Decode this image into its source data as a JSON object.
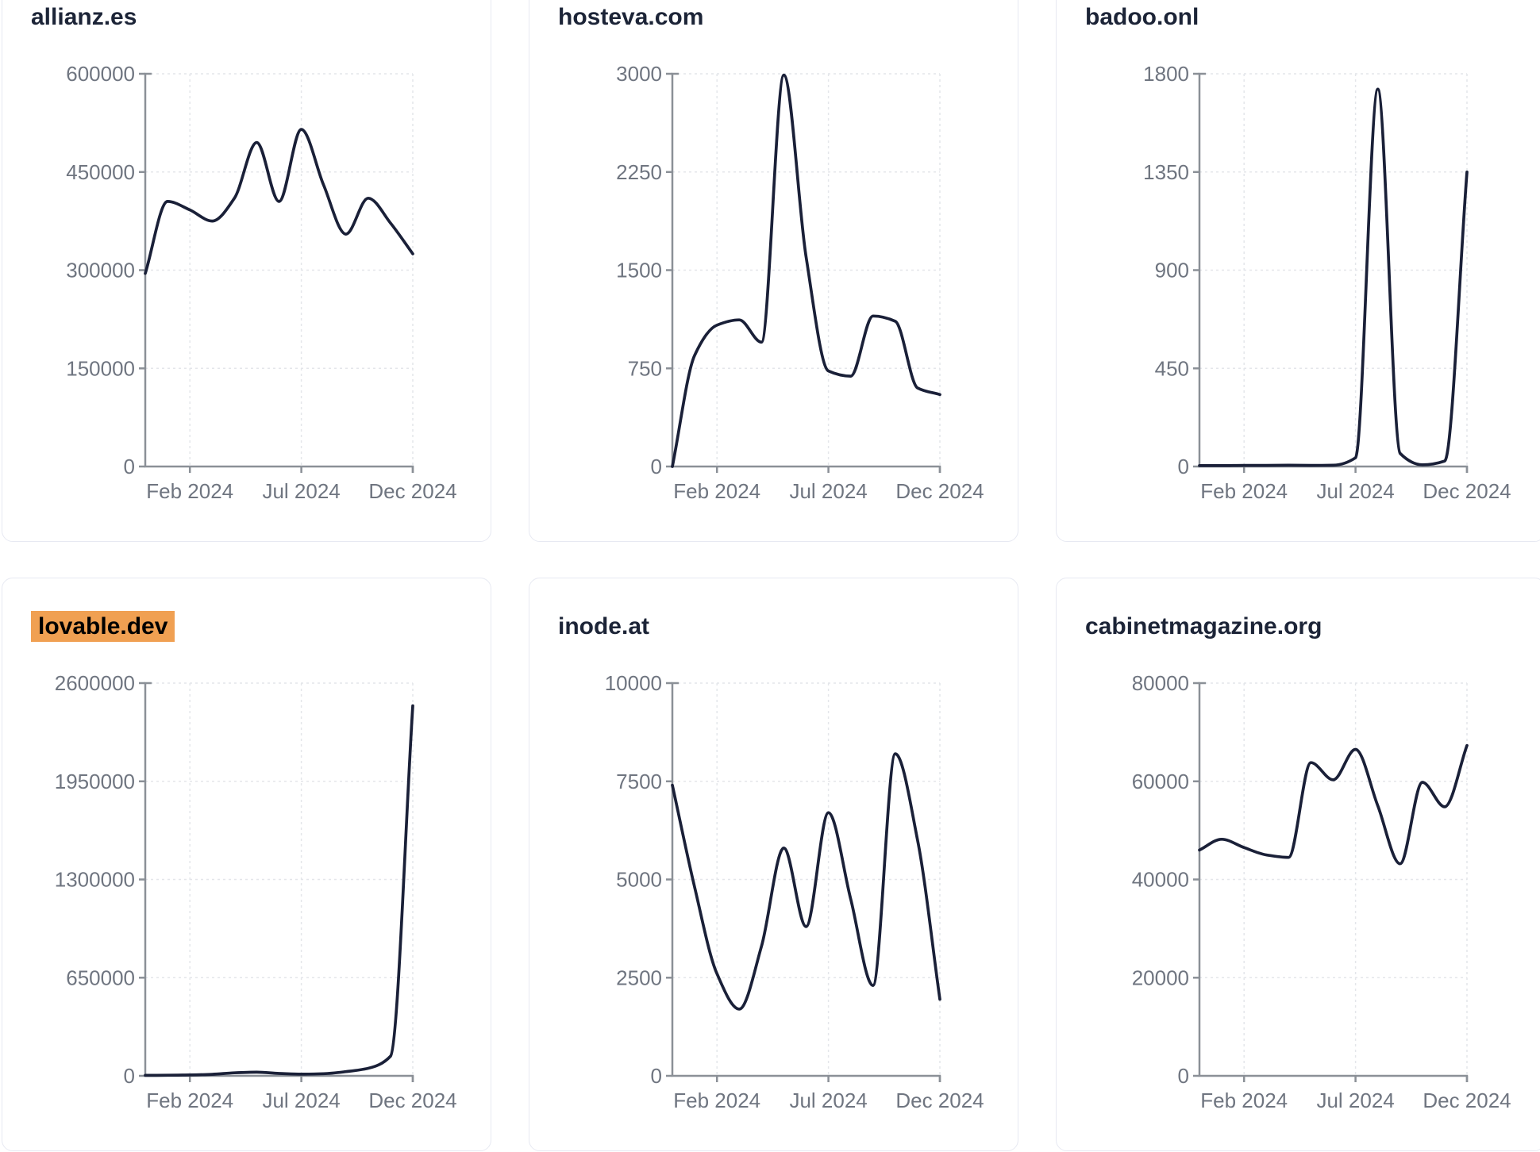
{
  "colors": {
    "background": "#ffffff",
    "card_border": "#e7e9f2",
    "title": "#1c2437",
    "highlight_bg": "#f0a052",
    "highlight_text": "#000000",
    "line": "#1a2038",
    "axis": "#8b9097",
    "tick_label": "#6f7580",
    "grid": "#e4e6ea"
  },
  "chart_data": [
    {
      "type": "line",
      "title": "allianz.es",
      "title_highlighted": false,
      "x": [
        "Dec 2023",
        "Jan 2024",
        "Feb 2024",
        "Mar 2024",
        "Apr 2024",
        "May 2024",
        "Jun 2024",
        "Jul 2024",
        "Aug 2024",
        "Sep 2024",
        "Oct 2024",
        "Nov 2024",
        "Dec 2024"
      ],
      "values": [
        295000,
        405000,
        392000,
        375000,
        410000,
        495000,
        405000,
        515000,
        430000,
        355000,
        410000,
        372000,
        325000
      ],
      "y_ticks": [
        0,
        150000,
        300000,
        450000,
        600000
      ],
      "ylim": [
        0,
        600000
      ],
      "x_tick_labels": [
        "Feb 2024",
        "Jul 2024",
        "Dec 2024"
      ],
      "x_tick_indices": [
        2,
        7,
        12
      ],
      "grid": "dashed",
      "legend": "none"
    },
    {
      "type": "line",
      "title": "hosteva.com",
      "title_highlighted": false,
      "x": [
        "Dec 2023",
        "Jan 2024",
        "Feb 2024",
        "Mar 2024",
        "Apr 2024",
        "May 2024",
        "Jun 2024",
        "Jul 2024",
        "Aug 2024",
        "Sep 2024",
        "Oct 2024",
        "Nov 2024",
        "Dec 2024"
      ],
      "values": [
        0,
        850,
        1080,
        1120,
        950,
        2990,
        1600,
        730,
        690,
        1150,
        1110,
        600,
        550
      ],
      "y_ticks": [
        0,
        750,
        1500,
        2250,
        3000
      ],
      "ylim": [
        0,
        3000
      ],
      "x_tick_labels": [
        "Feb 2024",
        "Jul 2024",
        "Dec 2024"
      ],
      "x_tick_indices": [
        2,
        7,
        12
      ],
      "grid": "dashed",
      "legend": "none"
    },
    {
      "type": "line",
      "title": "badoo.onl",
      "title_highlighted": false,
      "x": [
        "Dec 2023",
        "Jan 2024",
        "Feb 2024",
        "Mar 2024",
        "Apr 2024",
        "May 2024",
        "Jun 2024",
        "Jul 2024",
        "Aug 2024",
        "Sep 2024",
        "Oct 2024",
        "Nov 2024",
        "Dec 2024"
      ],
      "values": [
        4,
        4,
        5,
        5,
        6,
        5,
        6,
        40,
        1730,
        60,
        8,
        25,
        1350
      ],
      "y_ticks": [
        0,
        450,
        900,
        1350,
        1800
      ],
      "ylim": [
        0,
        1800
      ],
      "x_tick_labels": [
        "Feb 2024",
        "Jul 2024",
        "Dec 2024"
      ],
      "x_tick_indices": [
        2,
        7,
        12
      ],
      "grid": "dashed",
      "legend": "none"
    },
    {
      "type": "line",
      "title": "lovable.dev",
      "title_highlighted": true,
      "x": [
        "Dec 2023",
        "Jan 2024",
        "Feb 2024",
        "Mar 2024",
        "Apr 2024",
        "May 2024",
        "Jun 2024",
        "Jul 2024",
        "Aug 2024",
        "Sep 2024",
        "Oct 2024",
        "Nov 2024",
        "Dec 2024"
      ],
      "values": [
        3000,
        4000,
        6000,
        10000,
        20000,
        24000,
        16000,
        11000,
        14000,
        28000,
        50000,
        130000,
        2450000
      ],
      "y_ticks": [
        0,
        650000,
        1300000,
        1950000,
        2600000
      ],
      "ylim": [
        0,
        2600000
      ],
      "x_tick_labels": [
        "Feb 2024",
        "Jul 2024",
        "Dec 2024"
      ],
      "x_tick_indices": [
        2,
        7,
        12
      ],
      "grid": "dashed",
      "legend": "none"
    },
    {
      "type": "line",
      "title": "inode.at",
      "title_highlighted": false,
      "x": [
        "Dec 2023",
        "Jan 2024",
        "Feb 2024",
        "Mar 2024",
        "Apr 2024",
        "May 2024",
        "Jun 2024",
        "Jul 2024",
        "Aug 2024",
        "Sep 2024",
        "Oct 2024",
        "Nov 2024",
        "Dec 2024"
      ],
      "values": [
        7400,
        4800,
        2600,
        1700,
        3300,
        5800,
        3800,
        6700,
        4500,
        2300,
        8200,
        6000,
        1950
      ],
      "y_ticks": [
        0,
        2500,
        5000,
        7500,
        10000
      ],
      "ylim": [
        0,
        10000
      ],
      "x_tick_labels": [
        "Feb 2024",
        "Jul 2024",
        "Dec 2024"
      ],
      "x_tick_indices": [
        2,
        7,
        12
      ],
      "grid": "dashed",
      "legend": "none"
    },
    {
      "type": "line",
      "title": "cabinetmagazine.org",
      "title_highlighted": false,
      "x": [
        "Dec 2023",
        "Jan 2024",
        "Feb 2024",
        "Mar 2024",
        "Apr 2024",
        "May 2024",
        "Jun 2024",
        "Jul 2024",
        "Aug 2024",
        "Sep 2024",
        "Oct 2024",
        "Nov 2024",
        "Dec 2024"
      ],
      "values": [
        46000,
        48200,
        46500,
        45000,
        44500,
        63800,
        60300,
        66500,
        55000,
        43200,
        59800,
        54800,
        67300
      ],
      "y_ticks": [
        0,
        20000,
        40000,
        60000,
        80000
      ],
      "ylim": [
        0,
        80000
      ],
      "x_tick_labels": [
        "Feb 2024",
        "Jul 2024",
        "Dec 2024"
      ],
      "x_tick_indices": [
        2,
        7,
        12
      ],
      "grid": "dashed",
      "legend": "none"
    }
  ]
}
